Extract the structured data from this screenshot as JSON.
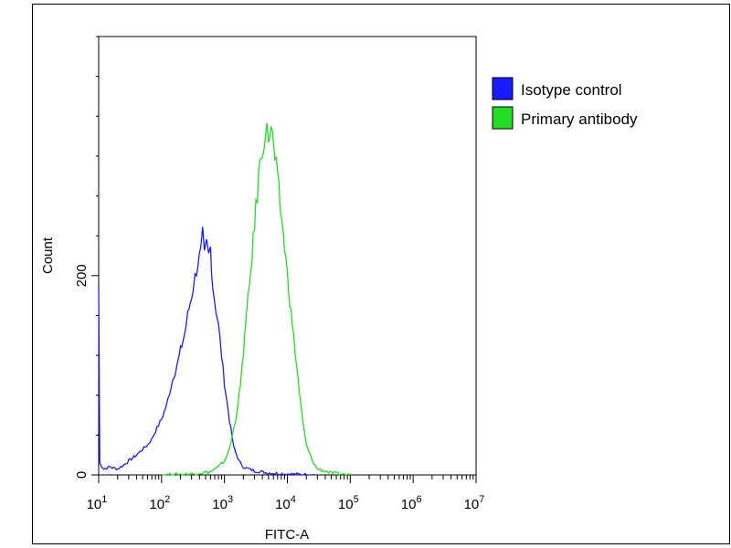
{
  "chart_data": {
    "type": "line",
    "xscale": "log",
    "xlabel": "FITC-A",
    "ylabel": "Count",
    "xlim": [
      10,
      10000000
    ],
    "ylim": [
      0,
      440
    ],
    "x_tick_labels": [
      {
        "value": 10,
        "base": "10",
        "exp": "1"
      },
      {
        "value": 100,
        "base": "10",
        "exp": "2"
      },
      {
        "value": 1000,
        "base": "10",
        "exp": "3"
      },
      {
        "value": 10000,
        "base": "10",
        "exp": "4"
      },
      {
        "value": 100000,
        "base": "10",
        "exp": "5"
      },
      {
        "value": 1000000,
        "base": "10",
        "exp": "6"
      },
      {
        "value": 10000000,
        "base": "10",
        "exp": "7"
      }
    ],
    "y_tick_labels": [
      {
        "value": 0,
        "label": "0"
      },
      {
        "value": 200,
        "label": "200"
      }
    ],
    "y_minor_ticks": [
      40,
      80,
      120,
      160,
      240,
      280,
      320,
      360,
      400,
      440
    ],
    "grid": false,
    "legend_position": "right",
    "series": [
      {
        "name": "Isotype control",
        "color": "#1a1aff",
        "points": [
          [
            10,
            190
          ],
          [
            10.4,
            12
          ],
          [
            12,
            6
          ],
          [
            15,
            8
          ],
          [
            20,
            6
          ],
          [
            25,
            10
          ],
          [
            30,
            14
          ],
          [
            40,
            20
          ],
          [
            50,
            26
          ],
          [
            60,
            30
          ],
          [
            70,
            36
          ],
          [
            80,
            44
          ],
          [
            100,
            56
          ],
          [
            120,
            70
          ],
          [
            150,
            96
          ],
          [
            180,
            112
          ],
          [
            200,
            125
          ],
          [
            230,
            140
          ],
          [
            260,
            160
          ],
          [
            300,
            180
          ],
          [
            340,
            198
          ],
          [
            380,
            214
          ],
          [
            420,
            222
          ],
          [
            450,
            240
          ],
          [
            480,
            218
          ],
          [
            520,
            232
          ],
          [
            560,
            220
          ],
          [
            600,
            228
          ],
          [
            650,
            190
          ],
          [
            700,
            175
          ],
          [
            800,
            150
          ],
          [
            900,
            120
          ],
          [
            1000,
            92
          ],
          [
            1200,
            55
          ],
          [
            1400,
            28
          ],
          [
            1700,
            14
          ],
          [
            2000,
            8
          ],
          [
            3000,
            4
          ],
          [
            5000,
            2
          ],
          [
            10000,
            1
          ],
          [
            30000,
            0
          ]
        ]
      },
      {
        "name": "Primary antibody",
        "color": "#22dd22",
        "points": [
          [
            100,
            0
          ],
          [
            300,
            1
          ],
          [
            600,
            3
          ],
          [
            800,
            8
          ],
          [
            1000,
            14
          ],
          [
            1200,
            26
          ],
          [
            1500,
            55
          ],
          [
            1800,
            90
          ],
          [
            2100,
            140
          ],
          [
            2500,
            190
          ],
          [
            3000,
            250
          ],
          [
            3500,
            300
          ],
          [
            4000,
            330
          ],
          [
            4500,
            345
          ],
          [
            5000,
            340
          ],
          [
            5500,
            348
          ],
          [
            6000,
            330
          ],
          [
            7000,
            295
          ],
          [
            8000,
            260
          ],
          [
            9000,
            230
          ],
          [
            10000,
            200
          ],
          [
            12000,
            150
          ],
          [
            14000,
            110
          ],
          [
            17000,
            60
          ],
          [
            20000,
            30
          ],
          [
            25000,
            14
          ],
          [
            30000,
            6
          ],
          [
            50000,
            2
          ],
          [
            100000,
            0
          ]
        ]
      }
    ]
  }
}
